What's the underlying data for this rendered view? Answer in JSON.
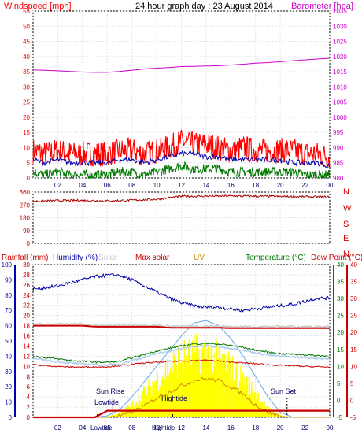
{
  "header": {
    "left_title": "Windspeed [mph]",
    "center_title": "24 hour graph day : 23 August 2014",
    "right_title": "Barometer [hpa]"
  },
  "colors": {
    "windspeed": "#ff0000",
    "barometer": "#cc00cc",
    "avg_wind": "#0000aa",
    "min_wind": "#007700",
    "direction": "#aa0000",
    "rainfall": "#cc0000",
    "humidity": "#0000aa",
    "solar": "#cccccc",
    "max_solar": "#cc0000",
    "uv": "#cc8800",
    "temperature": "#007700",
    "dewpoint": "#cc0000",
    "solar_fill": "#ffff00",
    "cyan": "#66aadd"
  },
  "x_ticks": [
    "02",
    "04",
    "06",
    "08",
    "10",
    "12",
    "14",
    "16",
    "18",
    "20",
    "22",
    "00"
  ],
  "chart_data": [
    {
      "type": "line",
      "title": "24 hour graph day : 23 August 2014",
      "ylabel": "Windspeed [mph]",
      "ylim": [
        0,
        55
      ],
      "y_ticks": [
        "55",
        "50",
        "45",
        "40",
        "35",
        "30",
        "25",
        "20",
        "15",
        "10",
        "5",
        "0"
      ],
      "y2label": "Barometer [hpa]",
      "y2lim": [
        980,
        1035
      ],
      "y2_ticks": [
        "1035",
        "1030",
        "1025",
        "1020",
        "1015",
        "1010",
        "1005",
        "1000",
        "995",
        "990",
        "985",
        "980"
      ],
      "x_hours": [
        0,
        1,
        2,
        3,
        4,
        5,
        6,
        7,
        8,
        9,
        10,
        11,
        12,
        13,
        14,
        15,
        16,
        17,
        18,
        19,
        20,
        21,
        22,
        23,
        24
      ],
      "series": [
        {
          "role": "gust",
          "values": [
            9,
            8,
            9,
            8,
            8,
            8,
            8,
            9,
            9,
            8,
            9,
            10,
            12,
            11,
            11,
            10,
            9,
            10,
            9,
            9,
            9,
            9,
            8,
            8,
            7
          ]
        },
        {
          "role": "avg",
          "values": [
            6,
            5,
            6,
            5,
            5,
            5,
            5,
            6,
            6,
            5,
            6,
            7,
            8,
            8,
            7,
            7,
            6,
            6,
            6,
            6,
            6,
            5,
            5,
            5,
            4
          ]
        },
        {
          "role": "min",
          "values": [
            2,
            1,
            2,
            1,
            1,
            1,
            1,
            2,
            2,
            1,
            2,
            3,
            4,
            3,
            3,
            3,
            2,
            2,
            2,
            2,
            2,
            2,
            1,
            1,
            1
          ]
        },
        {
          "role": "barometer",
          "values": [
            1015.6,
            1015.5,
            1015.3,
            1015.1,
            1014.9,
            1014.8,
            1014.8,
            1015.1,
            1015.5,
            1015.9,
            1016.2,
            1016.4,
            1016.7,
            1016.8,
            1016.9,
            1017.0,
            1017.2,
            1017.5,
            1017.8,
            1018.0,
            1018.3,
            1018.6,
            1018.9,
            1019.2,
            1019.4
          ]
        }
      ]
    },
    {
      "type": "line",
      "ylabel": "",
      "ylim": [
        0,
        360
      ],
      "y_ticks": [
        "360",
        "270",
        "180",
        "90",
        "0"
      ],
      "compass": [
        "N",
        "W",
        "S",
        "E",
        "N"
      ],
      "x_hours": [
        0,
        2,
        4,
        6,
        8,
        10,
        12,
        14,
        16,
        18,
        20,
        22,
        24
      ],
      "series": [
        {
          "role": "direction",
          "values": [
            296,
            300,
            302,
            298,
            303,
            310,
            330,
            332,
            333,
            331,
            329,
            328,
            326
          ]
        }
      ]
    },
    {
      "type": "line",
      "legend": [
        "Rainfall (mm)",
        "Humidity (%)",
        "Solar",
        "Max solar",
        "UV",
        "Temperature (°C)",
        "Dew Point (°C)"
      ],
      "axes": {
        "rainfall": {
          "ylim": [
            0,
            30
          ],
          "ticks": [
            "30",
            "28",
            "26",
            "24",
            "22",
            "20",
            "18",
            "16",
            "14",
            "12",
            "10",
            "8",
            "6",
            "4",
            "2",
            "0"
          ]
        },
        "humidity": {
          "ylim": [
            0,
            100
          ],
          "ticks": [
            "100",
            "90",
            "80",
            "70",
            "60",
            "50",
            "40",
            "30",
            "20",
            "10",
            "0"
          ]
        },
        "temperature": {
          "ylim": [
            -5,
            40
          ],
          "ticks": [
            "40",
            "35",
            "30",
            "25",
            "20",
            "15",
            "10",
            "5",
            "0",
            "-5"
          ]
        }
      },
      "annotations": {
        "sunrise": "Sun Rise",
        "sunset": "Sun Set",
        "lowtide": "Lowtide",
        "hightide": "Hightide",
        "lowtide_axis": "Lowtide",
        "hightide_axis": "Hightide"
      },
      "events_hours": {
        "sunrise": 6.45,
        "sunset": 20.55,
        "lowtide": 5.2,
        "hightide": 11.3
      },
      "x_hours": [
        0,
        1,
        2,
        3,
        4,
        5,
        6,
        7,
        8,
        9,
        10,
        11,
        12,
        13,
        14,
        15,
        16,
        17,
        18,
        19,
        20,
        21,
        22,
        23,
        24
      ],
      "series": [
        {
          "role": "humidity",
          "values": [
            84,
            85,
            86,
            88,
            90,
            92,
            93,
            93,
            90,
            86,
            82,
            78,
            75,
            73,
            72,
            72,
            71,
            70,
            71,
            72,
            73,
            74,
            76,
            78,
            78
          ]
        },
        {
          "role": "temperature",
          "values": [
            13,
            12.6,
            12.2,
            11.8,
            11.5,
            11.3,
            11.2,
            11.5,
            12.5,
            13.5,
            14.5,
            15.3,
            16,
            16.6,
            16.8,
            16.6,
            16.2,
            15.6,
            14.8,
            14.2,
            13.8,
            13.6,
            13.4,
            13.2,
            13
          ]
        },
        {
          "role": "dewpoint",
          "values": [
            10.5,
            10.2,
            10,
            9.8,
            9.8,
            9.8,
            9.9,
            10.2,
            10.6,
            11,
            11.2,
            11.5,
            11.6,
            11.7,
            11.8,
            11.6,
            11.3,
            11,
            10.8,
            10.5,
            10.3,
            10.2,
            10,
            9.9,
            9.8
          ]
        },
        {
          "role": "solar_curve",
          "values": [
            0,
            0,
            0,
            0,
            0,
            0,
            0.3,
            1.5,
            4,
            7,
            10,
            13,
            16,
            18.5,
            19,
            18,
            15.5,
            12,
            8,
            4,
            1,
            0,
            0,
            0,
            0
          ]
        },
        {
          "role": "solar",
          "values": [
            0,
            0,
            0,
            0,
            0,
            0,
            0.2,
            1,
            3,
            6,
            9,
            12,
            14,
            15,
            15.5,
            14,
            12,
            9,
            6,
            2,
            0.5,
            0,
            0,
            0,
            0
          ]
        },
        {
          "role": "uv",
          "values": [
            0,
            0,
            0,
            0,
            0,
            0,
            0,
            0.3,
            1,
            2.2,
            3.8,
            5,
            6.2,
            7.2,
            7.6,
            7.2,
            6,
            4.5,
            2.5,
            1,
            0.2,
            0,
            0,
            0,
            0
          ]
        },
        {
          "role": "rainfall_total",
          "values": [
            0,
            0,
            0,
            0,
            0,
            0,
            1.3,
            1.3,
            1.3,
            1.3,
            1.3,
            1.3,
            1.3,
            1.3,
            1.3,
            1.3,
            1.3,
            1.3,
            1.3,
            1.3,
            1.3,
            1.3,
            1.3,
            1.3,
            1.3
          ]
        },
        {
          "role": "rainfall_line",
          "values": [
            18,
            18,
            18,
            18,
            18,
            17.8,
            17.8,
            17.8,
            17.8,
            17.8,
            17.8,
            17.6,
            17.6,
            17.6,
            17.6,
            17.6,
            17.5,
            17.5,
            17.5,
            17.5,
            17.5,
            17.5,
            17.5,
            17.5,
            17.5
          ]
        }
      ]
    }
  ]
}
